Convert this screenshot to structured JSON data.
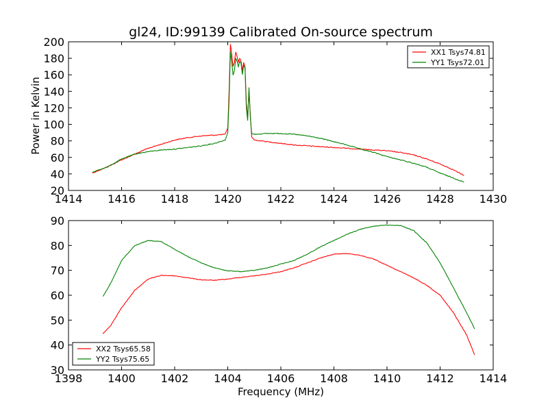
{
  "chart_data": [
    {
      "type": "line",
      "title": "gl24, ID:99139 Calibrated On-source spectrum",
      "xlabel": "",
      "ylabel": "Power in Kelvin",
      "xlim": [
        1414,
        1430
      ],
      "ylim": [
        20,
        200
      ],
      "xticks": [
        "1414",
        "1416",
        "1418",
        "1420",
        "1422",
        "1424",
        "1426",
        "1428",
        "1430"
      ],
      "yticks": [
        "20",
        "40",
        "60",
        "80",
        "100",
        "120",
        "140",
        "160",
        "180",
        "200"
      ],
      "legend_position": "top-right",
      "grid": false,
      "series": [
        {
          "name": "XX1 Tsys74.81",
          "color": "#ff0000",
          "points": [
            [
              1414.9,
              41
            ],
            [
              1415.5,
              49
            ],
            [
              1416,
              57
            ],
            [
              1416.5,
              64
            ],
            [
              1417,
              71
            ],
            [
              1417.5,
              76
            ],
            [
              1418,
              81
            ],
            [
              1418.5,
              84
            ],
            [
              1419,
              86
            ],
            [
              1419.5,
              87
            ],
            [
              1419.9,
              88
            ],
            [
              1420.0,
              95
            ],
            [
              1420.05,
              140
            ],
            [
              1420.1,
              197
            ],
            [
              1420.15,
              185
            ],
            [
              1420.2,
              170
            ],
            [
              1420.25,
              175
            ],
            [
              1420.3,
              188
            ],
            [
              1420.35,
              182
            ],
            [
              1420.4,
              176
            ],
            [
              1420.45,
              180
            ],
            [
              1420.5,
              177
            ],
            [
              1420.55,
              165
            ],
            [
              1420.6,
              175
            ],
            [
              1420.65,
              170
            ],
            [
              1420.7,
              125
            ],
            [
              1420.75,
              110
            ],
            [
              1420.8,
              140
            ],
            [
              1420.85,
              112
            ],
            [
              1420.9,
              85
            ],
            [
              1421.0,
              81
            ],
            [
              1421.5,
              79
            ],
            [
              1422,
              77
            ],
            [
              1422.5,
              75
            ],
            [
              1423,
              74
            ],
            [
              1423.5,
              73
            ],
            [
              1424,
              72
            ],
            [
              1424.5,
              71
            ],
            [
              1425,
              70
            ],
            [
              1425.5,
              69
            ],
            [
              1426,
              68
            ],
            [
              1426.5,
              66
            ],
            [
              1427,
              63
            ],
            [
              1427.5,
              58
            ],
            [
              1428,
              52
            ],
            [
              1428.5,
              45
            ],
            [
              1428.9,
              38
            ]
          ]
        },
        {
          "name": "YY1 Tsys72.01",
          "color": "#008000",
          "points": [
            [
              1414.9,
              42
            ],
            [
              1415.5,
              49
            ],
            [
              1416,
              58
            ],
            [
              1416.5,
              64
            ],
            [
              1417,
              67
            ],
            [
              1417.5,
              69
            ],
            [
              1418,
              70
            ],
            [
              1418.5,
              72
            ],
            [
              1419,
              74
            ],
            [
              1419.5,
              77
            ],
            [
              1419.9,
              81
            ],
            [
              1420.0,
              90
            ],
            [
              1420.05,
              130
            ],
            [
              1420.1,
              188
            ],
            [
              1420.15,
              175
            ],
            [
              1420.2,
              160
            ],
            [
              1420.25,
              165
            ],
            [
              1420.3,
              180
            ],
            [
              1420.35,
              176
            ],
            [
              1420.4,
              170
            ],
            [
              1420.45,
              176
            ],
            [
              1420.5,
              174
            ],
            [
              1420.55,
              160
            ],
            [
              1420.6,
              172
            ],
            [
              1420.65,
              168
            ],
            [
              1420.7,
              120
            ],
            [
              1420.75,
              105
            ],
            [
              1420.8,
              145
            ],
            [
              1420.85,
              108
            ],
            [
              1420.9,
              89
            ],
            [
              1421.0,
              88
            ],
            [
              1421.5,
              89
            ],
            [
              1422,
              89
            ],
            [
              1422.5,
              88
            ],
            [
              1423,
              86
            ],
            [
              1423.5,
              83
            ],
            [
              1424,
              79
            ],
            [
              1424.5,
              75
            ],
            [
              1425,
              70
            ],
            [
              1425.5,
              66
            ],
            [
              1426,
              61
            ],
            [
              1426.5,
              57
            ],
            [
              1427,
              53
            ],
            [
              1427.5,
              48
            ],
            [
              1428,
              41
            ],
            [
              1428.5,
              35
            ],
            [
              1428.9,
              30
            ]
          ]
        }
      ]
    },
    {
      "type": "line",
      "title": "",
      "xlabel": "Frequency (MHz)",
      "ylabel": "",
      "xlim": [
        1398,
        1414
      ],
      "ylim": [
        30,
        90
      ],
      "xticks": [
        "1398",
        "1400",
        "1402",
        "1404",
        "1406",
        "1408",
        "1410",
        "1412",
        "1414"
      ],
      "yticks": [
        "30",
        "40",
        "50",
        "60",
        "70",
        "80",
        "90"
      ],
      "legend_position": "bottom-left",
      "grid": false,
      "series": [
        {
          "name": "XX2 Tsys65.58",
          "color": "#ff0000",
          "points": [
            [
              1399.3,
              44.5
            ],
            [
              1399.6,
              48
            ],
            [
              1400,
              55
            ],
            [
              1400.5,
              62
            ],
            [
              1401,
              66.5
            ],
            [
              1401.5,
              68
            ],
            [
              1402,
              67.8
            ],
            [
              1402.5,
              67
            ],
            [
              1403,
              66.2
            ],
            [
              1403.5,
              66
            ],
            [
              1404,
              66.5
            ],
            [
              1404.5,
              67.2
            ],
            [
              1405,
              67.8
            ],
            [
              1405.5,
              68.5
            ],
            [
              1406,
              69.5
            ],
            [
              1406.5,
              71
            ],
            [
              1407,
              73
            ],
            [
              1407.5,
              75
            ],
            [
              1408,
              76.5
            ],
            [
              1408.5,
              76.8
            ],
            [
              1409,
              76
            ],
            [
              1409.5,
              74.5
            ],
            [
              1410,
              72
            ],
            [
              1410.5,
              69.5
            ],
            [
              1411,
              67
            ],
            [
              1411.5,
              64
            ],
            [
              1412,
              60
            ],
            [
              1412.5,
              53
            ],
            [
              1413,
              44
            ],
            [
              1413.3,
              36
            ]
          ]
        },
        {
          "name": "YY2 Tsys75.65",
          "color": "#008000",
          "points": [
            [
              1399.3,
              59.5
            ],
            [
              1399.6,
              65
            ],
            [
              1400,
              74
            ],
            [
              1400.5,
              80
            ],
            [
              1401,
              82
            ],
            [
              1401.5,
              81.5
            ],
            [
              1402,
              78.5
            ],
            [
              1402.5,
              75.5
            ],
            [
              1403,
              73
            ],
            [
              1403.5,
              71
            ],
            [
              1404,
              69.8
            ],
            [
              1404.5,
              69.5
            ],
            [
              1405,
              70
            ],
            [
              1405.5,
              71
            ],
            [
              1406,
              72.5
            ],
            [
              1406.5,
              74
            ],
            [
              1407,
              76.5
            ],
            [
              1407.5,
              79.5
            ],
            [
              1408,
              82
            ],
            [
              1408.5,
              84.5
            ],
            [
              1409,
              86.5
            ],
            [
              1409.5,
              87.8
            ],
            [
              1410,
              88.2
            ],
            [
              1410.5,
              88
            ],
            [
              1411,
              86
            ],
            [
              1411.5,
              81
            ],
            [
              1412,
              73
            ],
            [
              1412.5,
              63
            ],
            [
              1413,
              53
            ],
            [
              1413.3,
              46.5
            ]
          ]
        }
      ]
    }
  ]
}
